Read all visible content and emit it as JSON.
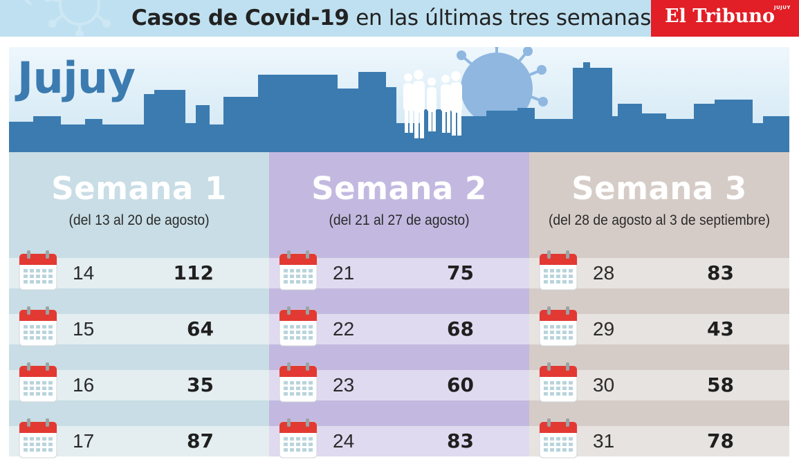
{
  "header": {
    "title_bold": "Casos de Covid-19",
    "title_rest": "en las últimas tres semanas",
    "brand": "El Tribuno",
    "brand_sub": "JUJUY"
  },
  "region": "Jujuy",
  "colors": {
    "header_bg": "#bfe0f0",
    "brand_red": "#e21e26",
    "week1": "#c8dde5",
    "week2": "#c3b9e0",
    "week3": "#d6ccc7",
    "skyline": "#3b7bb0"
  },
  "chart_data": {
    "type": "table",
    "weeks": [
      {
        "title": "Semana 1",
        "range": "(del 13 al 20 de agosto)",
        "rows": [
          {
            "day": "14",
            "cases": 112
          },
          {
            "day": "15",
            "cases": 64
          },
          {
            "day": "16",
            "cases": 35
          },
          {
            "day": "17",
            "cases": 87
          }
        ]
      },
      {
        "title": "Semana 2",
        "range": "(del 21 al 27  de agosto)",
        "rows": [
          {
            "day": "21",
            "cases": 75
          },
          {
            "day": "22",
            "cases": 68
          },
          {
            "day": "23",
            "cases": 60
          },
          {
            "day": "24",
            "cases": 83
          }
        ]
      },
      {
        "title": "Semana 3",
        "range": "(del 28 de agosto al 3 de septiembre)",
        "rows": [
          {
            "day": "28",
            "cases": 83
          },
          {
            "day": "29",
            "cases": 43
          },
          {
            "day": "30",
            "cases": 58
          },
          {
            "day": "31",
            "cases": 78
          }
        ]
      }
    ]
  }
}
